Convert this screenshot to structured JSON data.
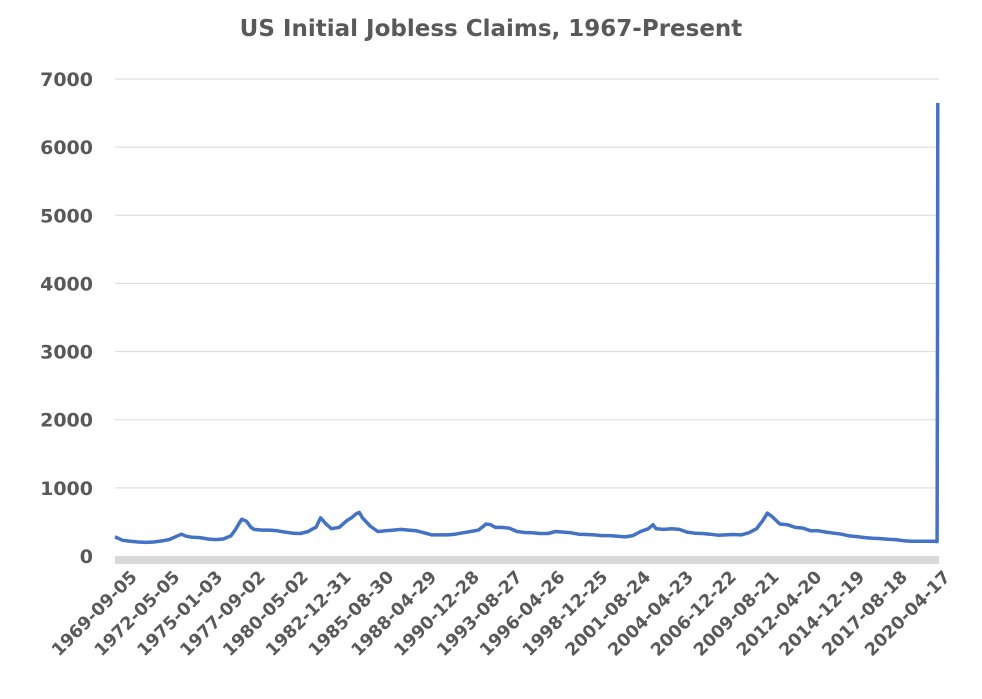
{
  "chart_data": {
    "type": "line",
    "title": "US Initial Jobless Claims, 1967-Present",
    "xlabel": "",
    "ylabel": "",
    "ylim": [
      0,
      7000
    ],
    "yticks": [
      0,
      1000,
      2000,
      3000,
      4000,
      5000,
      6000,
      7000
    ],
    "xtick_labels": [
      "1969-09-05",
      "1972-05-05",
      "1975-01-03",
      "1977-09-02",
      "1980-05-02",
      "1982-12-31",
      "1985-08-30",
      "1988-04-29",
      "1990-12-28",
      "1993-08-27",
      "1996-04-26",
      "1998-12-25",
      "2001-08-24",
      "2004-04-23",
      "2006-12-22",
      "2009-08-21",
      "2012-04-20",
      "2014-12-19",
      "2017-08-18",
      "2020-04-17"
    ],
    "x_start": "1967-01-07",
    "x_end": "2020-04-17",
    "grid": true,
    "legend": "none",
    "color": "#4472C4",
    "series": [
      {
        "values": [
          [
            1967.0,
            280
          ],
          [
            1967.5,
            230
          ],
          [
            1968.0,
            215
          ],
          [
            1968.5,
            205
          ],
          [
            1969.0,
            200
          ],
          [
            1969.5,
            205
          ],
          [
            1970.0,
            220
          ],
          [
            1970.5,
            240
          ],
          [
            1971.0,
            290
          ],
          [
            1971.3,
            320
          ],
          [
            1971.6,
            290
          ],
          [
            1972.0,
            275
          ],
          [
            1972.5,
            270
          ],
          [
            1973.0,
            250
          ],
          [
            1973.5,
            240
          ],
          [
            1974.0,
            250
          ],
          [
            1974.5,
            295
          ],
          [
            1974.8,
            390
          ],
          [
            1975.0,
            470
          ],
          [
            1975.2,
            540
          ],
          [
            1975.5,
            510
          ],
          [
            1975.8,
            420
          ],
          [
            1976.0,
            390
          ],
          [
            1976.5,
            380
          ],
          [
            1977.0,
            380
          ],
          [
            1977.5,
            370
          ],
          [
            1978.0,
            350
          ],
          [
            1978.5,
            335
          ],
          [
            1979.0,
            330
          ],
          [
            1979.5,
            360
          ],
          [
            1979.8,
            400
          ],
          [
            1980.0,
            420
          ],
          [
            1980.3,
            560
          ],
          [
            1980.6,
            480
          ],
          [
            1981.0,
            400
          ],
          [
            1981.5,
            420
          ],
          [
            1981.8,
            480
          ],
          [
            1982.0,
            520
          ],
          [
            1982.3,
            560
          ],
          [
            1982.6,
            620
          ],
          [
            1982.8,
            640
          ],
          [
            1983.0,
            560
          ],
          [
            1983.5,
            440
          ],
          [
            1984.0,
            360
          ],
          [
            1984.5,
            370
          ],
          [
            1985.0,
            380
          ],
          [
            1985.5,
            390
          ],
          [
            1986.0,
            380
          ],
          [
            1986.5,
            370
          ],
          [
            1987.0,
            340
          ],
          [
            1987.5,
            310
          ],
          [
            1988.0,
            310
          ],
          [
            1988.5,
            310
          ],
          [
            1989.0,
            320
          ],
          [
            1989.5,
            340
          ],
          [
            1990.0,
            360
          ],
          [
            1990.5,
            380
          ],
          [
            1990.8,
            430
          ],
          [
            1991.0,
            470
          ],
          [
            1991.3,
            460
          ],
          [
            1991.6,
            420
          ],
          [
            1992.0,
            420
          ],
          [
            1992.5,
            410
          ],
          [
            1993.0,
            360
          ],
          [
            1993.5,
            345
          ],
          [
            1994.0,
            340
          ],
          [
            1994.5,
            330
          ],
          [
            1995.0,
            330
          ],
          [
            1995.5,
            360
          ],
          [
            1996.0,
            350
          ],
          [
            1996.5,
            340
          ],
          [
            1997.0,
            320
          ],
          [
            1997.5,
            315
          ],
          [
            1998.0,
            310
          ],
          [
            1998.5,
            300
          ],
          [
            1999.0,
            300
          ],
          [
            1999.5,
            290
          ],
          [
            2000.0,
            280
          ],
          [
            2000.5,
            300
          ],
          [
            2001.0,
            360
          ],
          [
            2001.5,
            400
          ],
          [
            2001.8,
            460
          ],
          [
            2002.0,
            400
          ],
          [
            2002.5,
            390
          ],
          [
            2003.0,
            400
          ],
          [
            2003.5,
            390
          ],
          [
            2004.0,
            350
          ],
          [
            2004.5,
            335
          ],
          [
            2005.0,
            330
          ],
          [
            2005.5,
            320
          ],
          [
            2006.0,
            305
          ],
          [
            2006.5,
            310
          ],
          [
            2007.0,
            315
          ],
          [
            2007.5,
            310
          ],
          [
            2008.0,
            340
          ],
          [
            2008.5,
            400
          ],
          [
            2008.9,
            520
          ],
          [
            2009.2,
            630
          ],
          [
            2009.5,
            580
          ],
          [
            2010.0,
            470
          ],
          [
            2010.5,
            460
          ],
          [
            2011.0,
            420
          ],
          [
            2011.5,
            410
          ],
          [
            2012.0,
            370
          ],
          [
            2012.5,
            370
          ],
          [
            2013.0,
            350
          ],
          [
            2013.5,
            335
          ],
          [
            2014.0,
            320
          ],
          [
            2014.5,
            295
          ],
          [
            2015.0,
            285
          ],
          [
            2015.5,
            270
          ],
          [
            2016.0,
            260
          ],
          [
            2016.5,
            255
          ],
          [
            2017.0,
            245
          ],
          [
            2017.5,
            240
          ],
          [
            2018.0,
            225
          ],
          [
            2018.5,
            215
          ],
          [
            2019.0,
            215
          ],
          [
            2019.5,
            215
          ],
          [
            2020.0,
            215
          ],
          [
            2020.18,
            212
          ],
          [
            2020.2,
            3300
          ],
          [
            2020.22,
            6650
          ]
        ]
      }
    ]
  }
}
